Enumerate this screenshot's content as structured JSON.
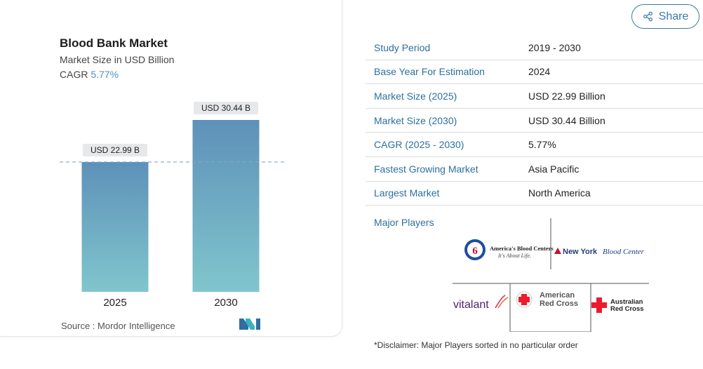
{
  "chart": {
    "title": "Blood Bank Market",
    "subtitle": "Market Size in USD Billion",
    "cagr_label": "CAGR",
    "cagr_value": "5.77%",
    "source": "Source :  Mordor Intelligence",
    "colors": {
      "bar_top": "#5e91b9",
      "bar_bottom": "#7fc4cc",
      "dashed": "#7fa8c8",
      "label_bg": "#e6e8ea"
    }
  },
  "chart_data": {
    "type": "bar",
    "categories": [
      "2025",
      "2030"
    ],
    "values": [
      22.99,
      30.44
    ],
    "data_labels": [
      "USD 22.99 B",
      "USD 30.44 B"
    ],
    "title": "Blood Bank Market",
    "subtitle": "Market Size in USD Billion",
    "ylabel": "",
    "xlabel": "",
    "ylim": [
      0,
      30.44
    ],
    "grid": false
  },
  "share": {
    "label": "Share",
    "icon": "share-icon"
  },
  "table": {
    "rows": [
      {
        "key": "Study Period",
        "value": "2019 - 2030"
      },
      {
        "key": "Base Year For Estimation",
        "value": "2024"
      },
      {
        "key": "Market Size (2025)",
        "value": "USD 22.99 Billion"
      },
      {
        "key": "Market Size (2030)",
        "value": "USD 30.44 Billion"
      },
      {
        "key": "CAGR (2025 - 2030)",
        "value": "5.77%"
      },
      {
        "key": "Fastest Growing Market",
        "value": "Asia Pacific"
      },
      {
        "key": "Largest Market",
        "value": "North America"
      }
    ]
  },
  "players": {
    "label": "Major Players",
    "logos": {
      "abc_line1": "America's Blood Centers",
      "abc_line2": "It's About Life.",
      "nybc_bold": "New York",
      "nybc_italic": "Blood Center",
      "vitalant": "vitalant",
      "arc_line1": "American",
      "arc_line2": "Red Cross",
      "aus_line1": "Australian",
      "aus_line2": "Red Cross"
    }
  },
  "disclaimer": "*Disclaimer: Major Players sorted in no particular order"
}
